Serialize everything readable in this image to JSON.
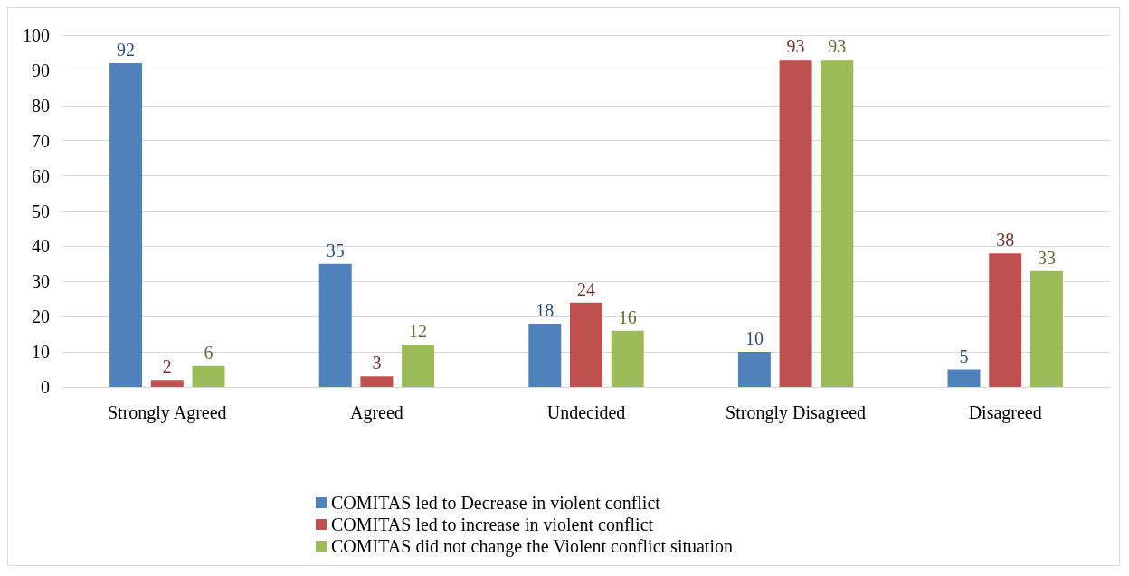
{
  "chart_data": {
    "type": "bar",
    "categories": [
      "Strongly Agreed",
      "Agreed",
      "Undecided",
      "Strongly Disagreed",
      "Disagreed"
    ],
    "series": [
      {
        "name": "COMITAS led to Decrease in violent conflict",
        "color": "#4f81bd",
        "values": [
          92,
          35,
          18,
          10,
          5
        ]
      },
      {
        "name": "COMITAS led to increase in violent conflict",
        "color": "#c0504d",
        "values": [
          2,
          3,
          24,
          93,
          38
        ]
      },
      {
        "name": "COMITAS did not change the Violent conflict situation",
        "color": "#9bbb59",
        "values": [
          6,
          12,
          16,
          93,
          33
        ]
      }
    ],
    "ylim": [
      0,
      100
    ],
    "yticks": [
      0,
      10,
      20,
      30,
      40,
      50,
      60,
      70,
      80,
      90,
      100
    ],
    "grid": "y",
    "legend": "bottom",
    "data_labels": true
  }
}
